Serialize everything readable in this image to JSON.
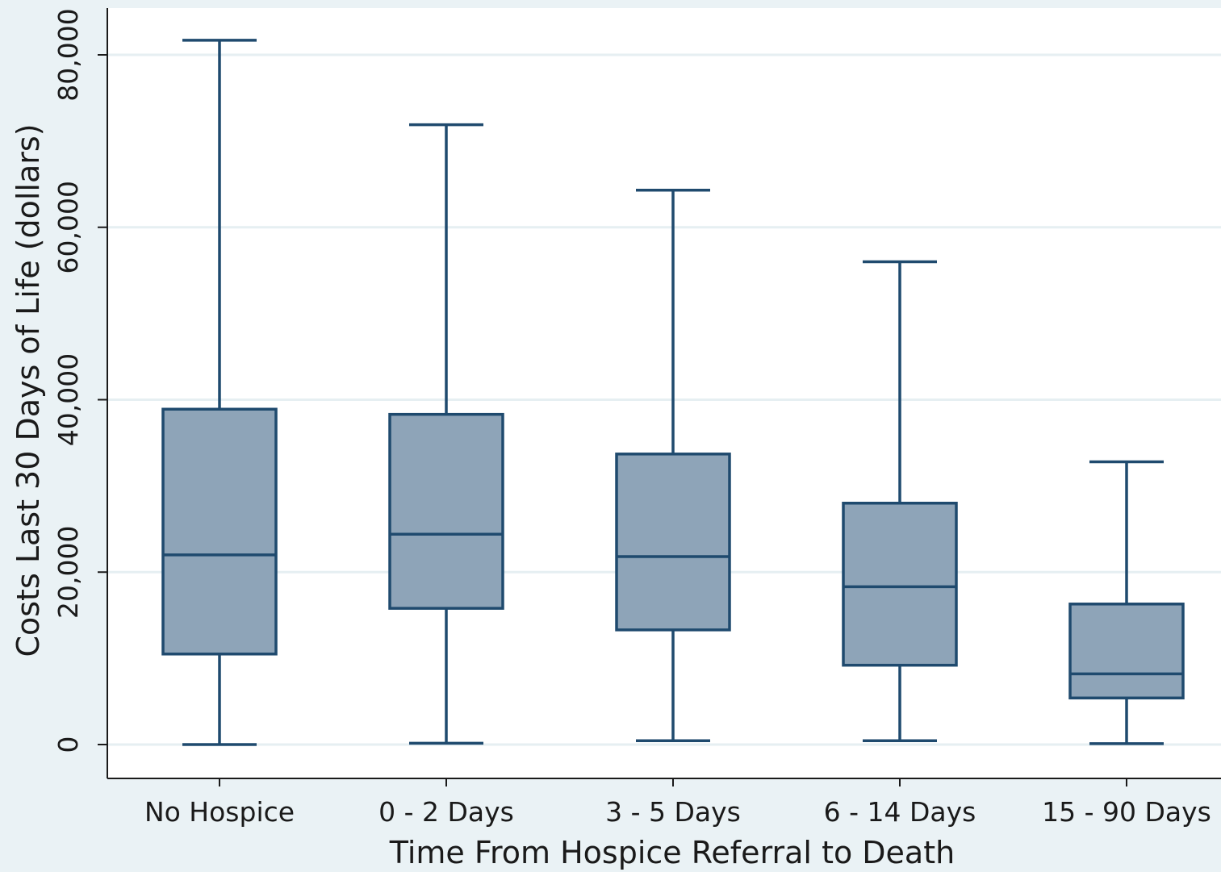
{
  "chart_data": {
    "type": "box",
    "xlabel": "Time From Hospice Referral to Death",
    "ylabel": "Costs Last 30 Days of Life (dollars)",
    "ylim": [
      -4000,
      85500
    ],
    "yticks": [
      0,
      20000,
      40000,
      60000,
      80000
    ],
    "ytick_labels": [
      "0",
      "20,000",
      "40,000",
      "60,000",
      "80,000"
    ],
    "grid": true,
    "categories": [
      "No Hospice",
      "0 - 2 Days",
      "3 - 5 Days",
      "6 - 14 Days",
      "15 - 90 Days"
    ],
    "boxes": [
      {
        "category": "No Hospice",
        "whisker_low": 0,
        "q1": 10500,
        "median": 22000,
        "q3": 38900,
        "whisker_high": 81700
      },
      {
        "category": "0 - 2 Days",
        "whisker_low": 150,
        "q1": 15800,
        "median": 24400,
        "q3": 38300,
        "whisker_high": 71900
      },
      {
        "category": "3 - 5 Days",
        "whisker_low": 450,
        "q1": 13300,
        "median": 21800,
        "q3": 33700,
        "whisker_high": 64300
      },
      {
        "category": "6 - 14 Days",
        "whisker_low": 450,
        "q1": 9200,
        "median": 18300,
        "q3": 28000,
        "whisker_high": 56000
      },
      {
        "category": "15 - 90 Days",
        "whisker_low": 100,
        "q1": 5400,
        "median": 8200,
        "q3": 16300,
        "whisker_high": 32800
      }
    ],
    "colors": {
      "box_fill": "#8ea4b8",
      "box_stroke": "#1f4a6e",
      "plot_background": "#ffffff",
      "outer_background": "#eaf2f5",
      "gridline": "#e6eff2",
      "axis": "#1a1a1a"
    }
  }
}
